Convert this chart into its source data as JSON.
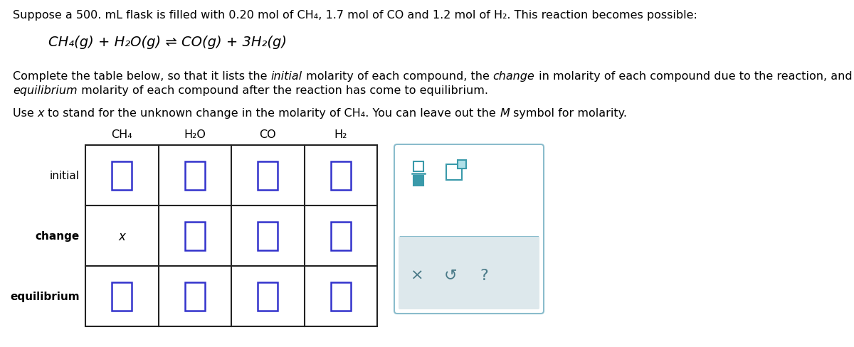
{
  "background_color": "#ffffff",
  "line1": "Suppose a 500. mL flask is filled with 0.20 mol of CH₄, 1.7 mol of CO and 1.2 mol of H₂. This reaction becomes possible:",
  "reaction": "CH₄(g) + H₂O(g) ⇌ CO(g) + 3H₂(g)",
  "p1_parts": [
    [
      "Complete the table below, so that it lists the ",
      "normal"
    ],
    [
      "initial",
      "italic"
    ],
    [
      " molarity of each compound, the ",
      "normal"
    ],
    [
      "change",
      "italic"
    ],
    [
      " in molarity of each compound due to the reaction, and the",
      "normal"
    ]
  ],
  "p1_line2_parts": [
    [
      "equilibrium",
      "italic"
    ],
    [
      " molarity of each compound after the reaction has come to equilibrium.",
      "normal"
    ]
  ],
  "p2_parts": [
    [
      "Use ",
      "normal"
    ],
    [
      "x",
      "italic"
    ],
    [
      " to stand for the unknown change in the molarity of CH₄. You can leave out the ",
      "normal"
    ],
    [
      "M",
      "italic"
    ],
    [
      " symbol for molarity.",
      "normal"
    ]
  ],
  "col_headers": [
    "CH₄",
    "H₂O",
    "CO",
    "H₂"
  ],
  "row_labels": [
    "initial",
    "change",
    "equilibrium"
  ],
  "change_ch4": "x",
  "box_color": "#3333cc",
  "table_line_color": "#222222",
  "text_color": "#000000",
  "teal": "#3a9aaa",
  "panel_border": "#8abccc",
  "panel_bg_top": "#ffffff",
  "panel_bg_bot": "#dde8ec",
  "font_size": 11.5
}
